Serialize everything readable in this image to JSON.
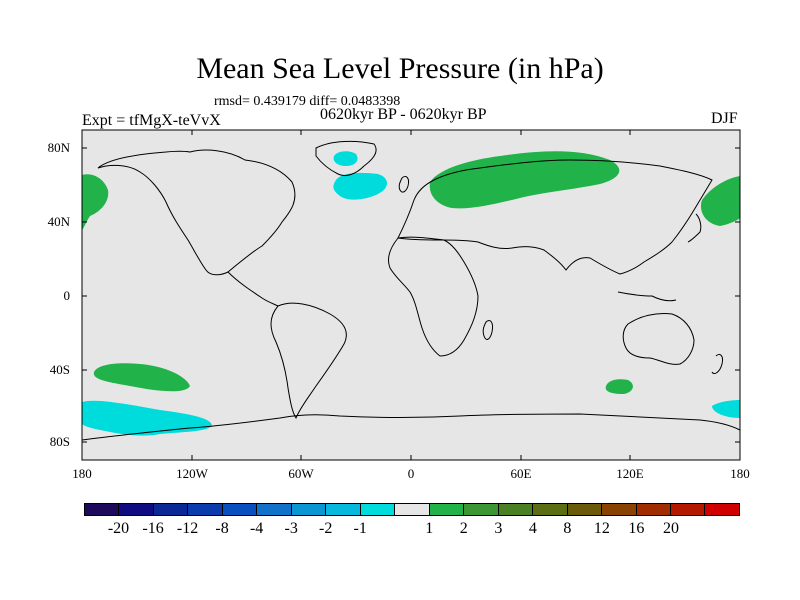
{
  "title": "Mean Sea Level Pressure (in hPa)",
  "stats": "rmsd= 0.439179 diff= 0.0483398",
  "period": "0620kyr BP - 0620kyr BP",
  "experiment": "Expt = tfMgX-teVvX",
  "season": "DJF",
  "map": {
    "projection": "cylindrical equidistant",
    "background_color": "#e6e6e6",
    "lat_labels": [
      "80N",
      "40N",
      "0",
      "40S",
      "80S"
    ],
    "lon_labels": [
      "180",
      "120W",
      "60W",
      "0",
      "60E",
      "120E",
      "180"
    ]
  },
  "anomaly_regions": [
    {
      "name": "Scandinavia–Siberia positive",
      "sign": "positive",
      "color": "#21b24a"
    },
    {
      "name": "North Pacific east positive",
      "sign": "positive",
      "color": "#21b24a"
    },
    {
      "name": "North Pacific west positive",
      "sign": "positive",
      "color": "#21b24a"
    },
    {
      "name": "South Pacific positive",
      "sign": "positive",
      "color": "#21b24a"
    },
    {
      "name": "Southern Indian Ocean positive",
      "sign": "positive",
      "color": "#21b24a"
    },
    {
      "name": "Iceland negative",
      "sign": "negative",
      "color": "#00dcdc"
    },
    {
      "name": "Greenland negative",
      "sign": "negative",
      "color": "#00dcdc"
    },
    {
      "name": "Southern Ocean Pacific negative",
      "sign": "negative",
      "color": "#00dcdc"
    },
    {
      "name": "Southern Ocean southeast of Australia negative",
      "sign": "negative",
      "color": "#00dcdc"
    }
  ],
  "colorbar": {
    "colors": [
      "#1e0a5a",
      "#0e0c80",
      "#0a2896",
      "#0a3cae",
      "#0850be",
      "#1072c8",
      "#0a96d2",
      "#06b8dc",
      "#00dcdc",
      "#e6e6e6",
      "#21b24a",
      "#3c9632",
      "#4a8024",
      "#5c6e14",
      "#6a5a0a",
      "#8a4200",
      "#a02c00",
      "#b41800",
      "#d00000"
    ],
    "labels": [
      "-20",
      "-16",
      "-12",
      "-8",
      "-4",
      "-3",
      "-2",
      "-1",
      "1",
      "2",
      "3",
      "4",
      "8",
      "12",
      "16",
      "20"
    ]
  }
}
